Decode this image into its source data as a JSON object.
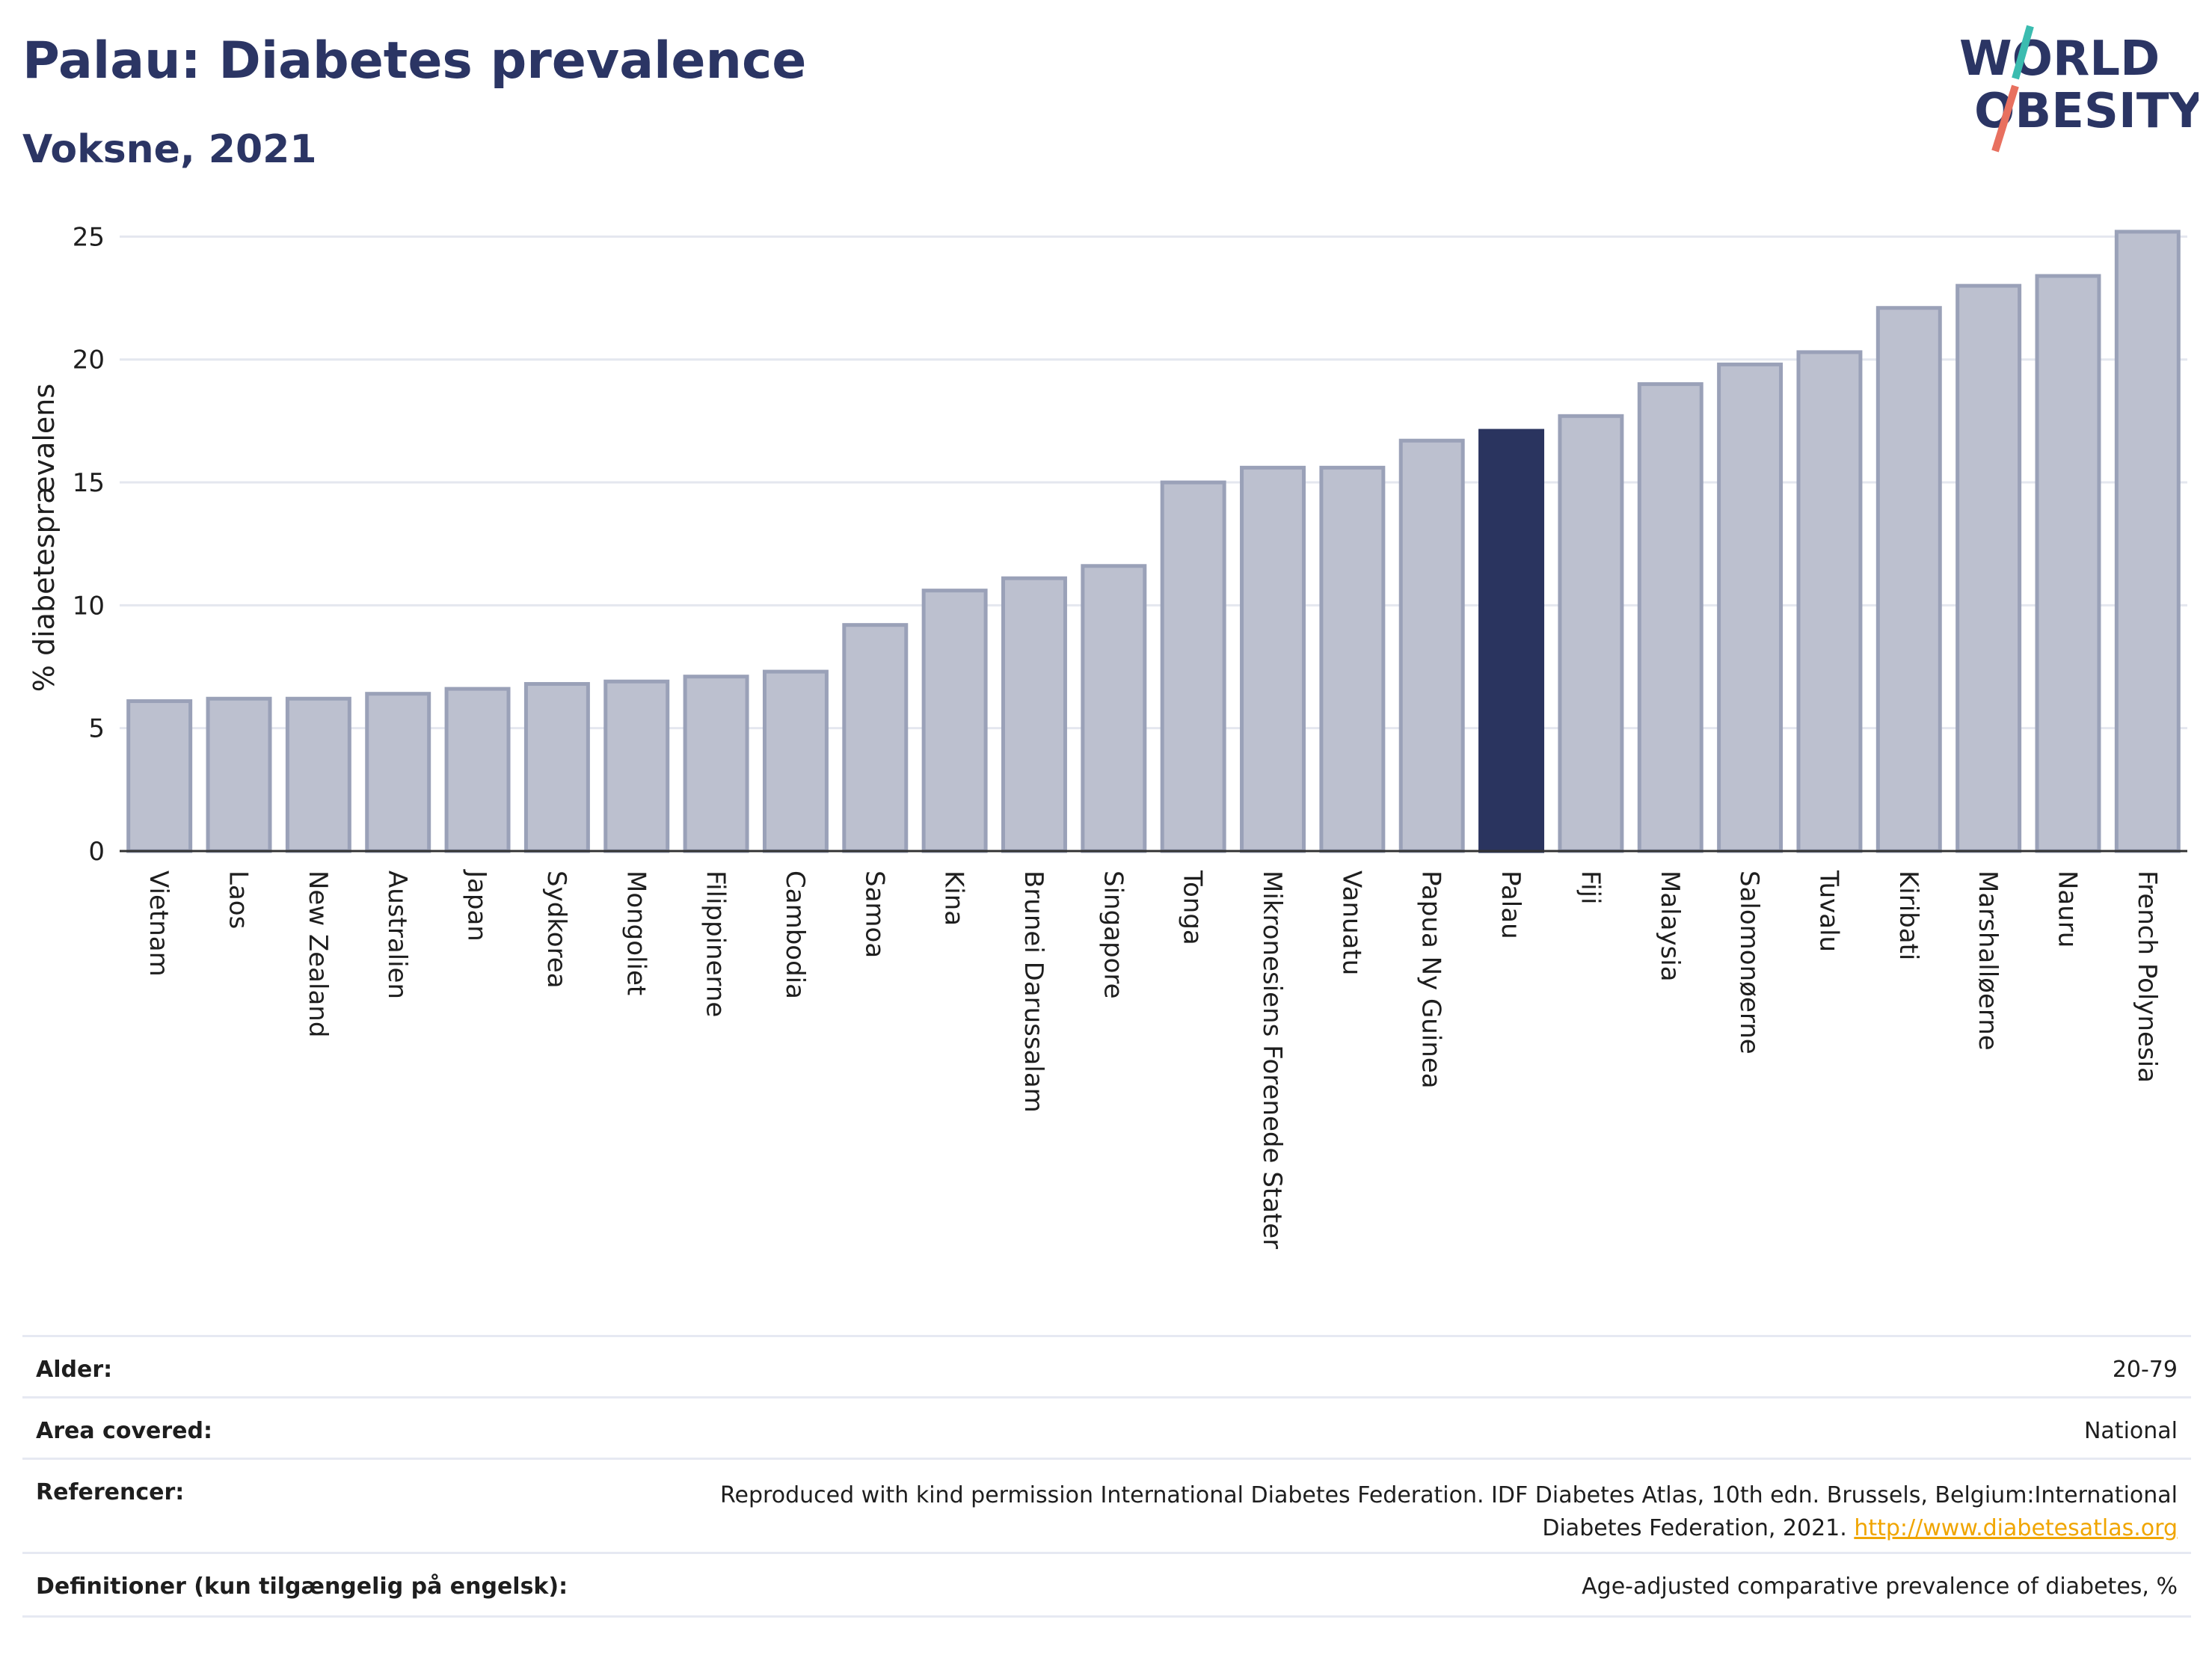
{
  "header": {
    "title": "Palau: Diabetes prevalence",
    "subtitle": "Voksne, 2021",
    "logo_line1": "WORLD",
    "logo_line2": "OBESITY"
  },
  "colors": {
    "bar": "#bcc0cf",
    "bar_stroke": "#9aa1b8",
    "highlight": "#2a345f",
    "title": "#2b3564",
    "logo_teal": "#3bbcb0",
    "logo_red": "#e8705f"
  },
  "chart_data": {
    "type": "bar",
    "ylabel": "% diabetesprævalens",
    "ylim": [
      0,
      25.5
    ],
    "yticks": [
      0,
      5,
      10,
      15,
      20,
      25
    ],
    "highlight": "Palau",
    "grid": true,
    "categories": [
      "Vietnam",
      "Laos",
      "New Zealand",
      "Australien",
      "Japan",
      "Sydkorea",
      "Mongoliet",
      "Filippinerne",
      "Cambodia",
      "Samoa",
      "Kina",
      "Brunei Darussalam",
      "Singapore",
      "Tonga",
      "Mikronesiens Forenede Stater",
      "Vanuatu",
      "Papua Ny Guinea",
      "Palau",
      "Fiji",
      "Malaysia",
      "Salomonøerne",
      "Tuvalu",
      "Kiribati",
      "Marshalløerne",
      "Nauru",
      "French Polynesia"
    ],
    "values": [
      6.1,
      6.2,
      6.2,
      6.4,
      6.6,
      6.8,
      6.9,
      7.1,
      7.3,
      9.2,
      10.6,
      11.1,
      11.6,
      15.0,
      15.6,
      15.6,
      16.7,
      17.1,
      17.7,
      19.0,
      19.8,
      20.3,
      22.1,
      23.0,
      23.4,
      25.2
    ]
  },
  "footer": {
    "rows": [
      {
        "label": "Alder:",
        "value": "20-79"
      },
      {
        "label": "Area covered:",
        "value": "National"
      },
      {
        "label": "Referencer:",
        "value_line1": "Reproduced with kind permission International Diabetes Federation.  IDF Diabetes Atlas, 10th edn. Brussels, Belgium:International",
        "value_line2": "Diabetes Federation, 2021.",
        "link": "http://www.diabetesatlas.org"
      },
      {
        "label": "Definitioner (kun tilgængelig på engelsk):",
        "value": "Age-adjusted comparative prevalence of diabetes, %"
      }
    ]
  }
}
